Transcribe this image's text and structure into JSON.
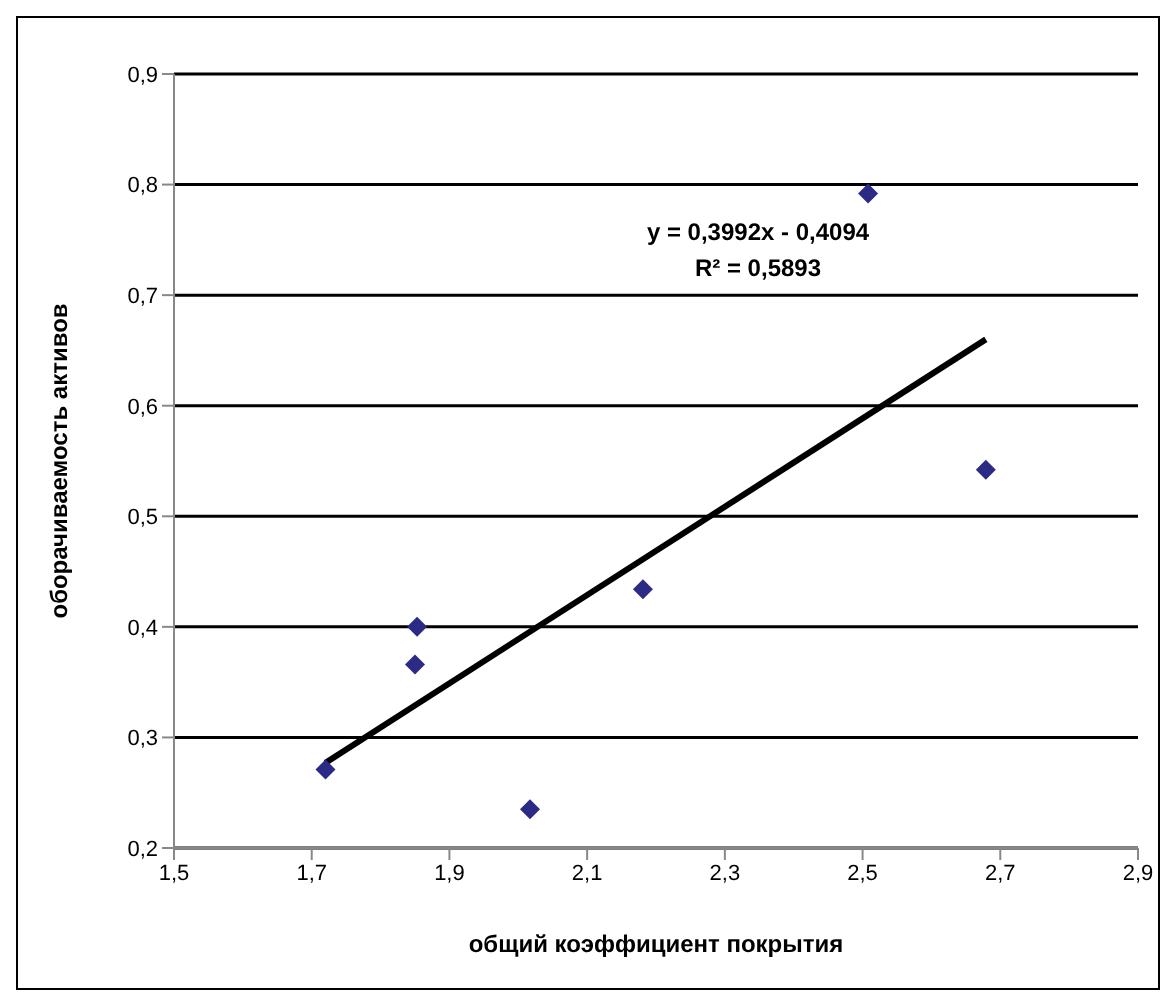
{
  "chart_data": {
    "type": "scatter",
    "xlabel": "общий коэффициент покрытия",
    "ylabel": "оборачиваемость активов",
    "annotations": [
      "y = 0,3992x - 0,4094",
      "R² = 0,5893"
    ],
    "series": [
      {
        "color": "#2b2b86",
        "x": [
          1.72,
          1.85,
          1.853,
          2.017,
          2.181,
          2.508,
          2.679
        ],
        "values": [
          0.271,
          0.366,
          0.4,
          0.235,
          0.434,
          0.792,
          0.542
        ],
        "marker": "diamond"
      },
      {
        "type": "line",
        "color": "#000000",
        "x": [
          1.72,
          2.679
        ],
        "values": [
          0.277,
          0.66
        ],
        "marker": "none",
        "line_style": "solid"
      }
    ],
    "xlim": [
      1.5,
      2.9
    ],
    "xticks": [
      {
        "value": 1.5,
        "label": "1,5"
      },
      {
        "value": 1.7,
        "label": "1,7"
      },
      {
        "value": 1.9,
        "label": "1,9"
      },
      {
        "value": 2.1,
        "label": "2,1"
      },
      {
        "value": 2.3,
        "label": "2,3"
      },
      {
        "value": 2.5,
        "label": "2,5"
      },
      {
        "value": 2.7,
        "label": "2,7"
      },
      {
        "value": 2.9,
        "label": "2,9"
      }
    ],
    "ylim": [
      0.2,
      0.9
    ],
    "yticks": [
      {
        "value": 0.2,
        "label": "0,2"
      },
      {
        "value": 0.3,
        "label": "0,3"
      },
      {
        "value": 0.4,
        "label": "0,4"
      },
      {
        "value": 0.5,
        "label": "0,5"
      },
      {
        "value": 0.6,
        "label": "0,6"
      },
      {
        "value": 0.7,
        "label": "0,7"
      },
      {
        "value": 0.8,
        "label": "0,8"
      },
      {
        "value": 0.9,
        "label": "0,9"
      }
    ],
    "grid": "y"
  }
}
